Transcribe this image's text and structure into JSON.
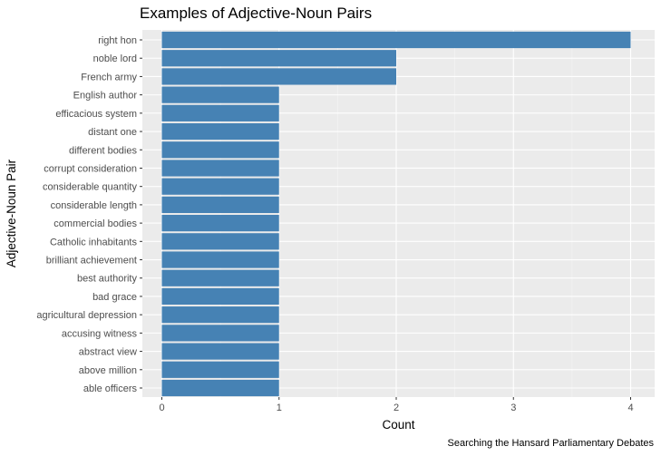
{
  "chart_data": {
    "type": "bar",
    "orientation": "horizontal",
    "title": "Examples of Adjective-Noun Pairs",
    "xlabel": "Count",
    "ylabel": "Adjective-Noun Pair",
    "caption": "Searching the Hansard Parliamentary Debates",
    "xlim": [
      0,
      4
    ],
    "xticks": [
      "0",
      "1",
      "2",
      "3",
      "4"
    ],
    "grid": true,
    "legend": "none",
    "categories": [
      "right hon",
      "noble lord",
      "French army",
      "English author",
      "efficacious system",
      "distant one",
      "different bodies",
      "corrupt consideration",
      "considerable quantity",
      "considerable length",
      "commercial bodies",
      "Catholic inhabitants",
      "brilliant achievement",
      "best authority",
      "bad grace",
      "agricultural depression",
      "accusing witness",
      "abstract view",
      "above million",
      "able officers"
    ],
    "values": [
      4,
      2,
      2,
      1,
      1,
      1,
      1,
      1,
      1,
      1,
      1,
      1,
      1,
      1,
      1,
      1,
      1,
      1,
      1,
      1
    ],
    "colors": {
      "bar": "#4682b4",
      "panel": "#ebebeb",
      "grid_major": "#ffffff",
      "grid_minor": "#f5f5f5",
      "tick_text": "#4d4d4d",
      "tick_mark": "#333333"
    }
  }
}
